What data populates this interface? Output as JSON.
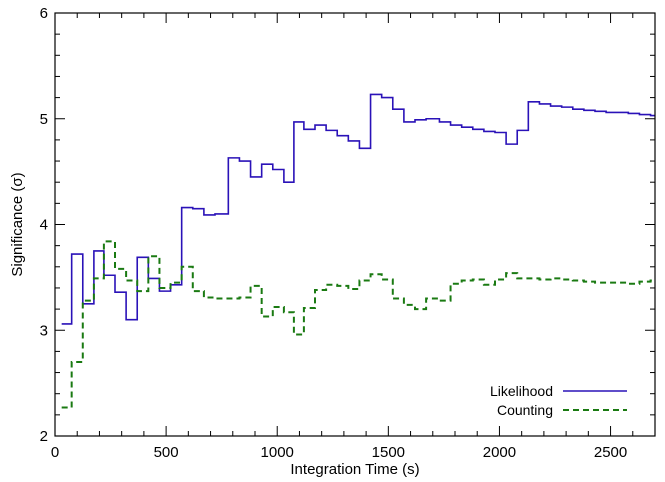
{
  "chart_data": {
    "type": "line",
    "step": true,
    "xlabel": "Integration Time (s)",
    "ylabel": "Significance (σ)",
    "xlim": [
      0,
      2700
    ],
    "ylim": [
      2,
      6
    ],
    "x_ticks": [
      0,
      500,
      1000,
      1500,
      2000,
      2500
    ],
    "x_tick_labels": [
      "0",
      "500",
      "1000",
      "1500",
      "2000",
      "2500"
    ],
    "y_ticks": [
      2,
      3,
      4,
      5,
      6
    ],
    "y_tick_labels": [
      "2",
      "3",
      "4",
      "5",
      "6"
    ],
    "grid": false,
    "legend": "bottom-right",
    "series": [
      {
        "name": "Likelihood",
        "color": "#2a12b8",
        "style": "solid",
        "bins": [
          [
            30,
            75,
            3.06
          ],
          [
            75,
            125,
            3.72
          ],
          [
            125,
            175,
            3.25
          ],
          [
            175,
            220,
            3.75
          ],
          [
            220,
            270,
            3.52
          ],
          [
            270,
            320,
            3.36
          ],
          [
            320,
            370,
            3.1
          ],
          [
            370,
            420,
            3.69
          ],
          [
            420,
            470,
            3.49
          ],
          [
            470,
            520,
            3.37
          ],
          [
            520,
            570,
            3.43
          ],
          [
            570,
            620,
            4.16
          ],
          [
            620,
            670,
            4.15
          ],
          [
            670,
            720,
            4.09
          ],
          [
            720,
            780,
            4.1
          ],
          [
            780,
            830,
            4.63
          ],
          [
            830,
            880,
            4.6
          ],
          [
            880,
            930,
            4.45
          ],
          [
            930,
            980,
            4.57
          ],
          [
            980,
            1030,
            4.52
          ],
          [
            1030,
            1075,
            4.4
          ],
          [
            1075,
            1120,
            4.97
          ],
          [
            1120,
            1170,
            4.9
          ],
          [
            1170,
            1220,
            4.94
          ],
          [
            1220,
            1270,
            4.89
          ],
          [
            1270,
            1320,
            4.84
          ],
          [
            1320,
            1370,
            4.79
          ],
          [
            1370,
            1420,
            4.72
          ],
          [
            1420,
            1470,
            5.23
          ],
          [
            1470,
            1520,
            5.2
          ],
          [
            1520,
            1570,
            5.09
          ],
          [
            1570,
            1620,
            4.97
          ],
          [
            1620,
            1670,
            4.99
          ],
          [
            1670,
            1730,
            5.0
          ],
          [
            1730,
            1780,
            4.97
          ],
          [
            1780,
            1830,
            4.94
          ],
          [
            1830,
            1880,
            4.92
          ],
          [
            1880,
            1930,
            4.9
          ],
          [
            1930,
            1980,
            4.88
          ],
          [
            1980,
            2030,
            4.87
          ],
          [
            2030,
            2080,
            4.76
          ],
          [
            2080,
            2130,
            4.89
          ],
          [
            2130,
            2180,
            5.16
          ],
          [
            2180,
            2230,
            5.14
          ],
          [
            2230,
            2280,
            5.12
          ],
          [
            2280,
            2330,
            5.11
          ],
          [
            2330,
            2380,
            5.09
          ],
          [
            2380,
            2430,
            5.08
          ],
          [
            2430,
            2480,
            5.07
          ],
          [
            2480,
            2530,
            5.06
          ],
          [
            2530,
            2580,
            5.06
          ],
          [
            2580,
            2630,
            5.05
          ],
          [
            2630,
            2680,
            5.04
          ],
          [
            2680,
            2700,
            5.03
          ]
        ]
      },
      {
        "name": "Counting",
        "color": "#1a7a12",
        "style": "dashed",
        "bins": [
          [
            30,
            75,
            2.27
          ],
          [
            75,
            125,
            2.7
          ],
          [
            125,
            175,
            3.28
          ],
          [
            175,
            220,
            3.49
          ],
          [
            220,
            270,
            3.84
          ],
          [
            270,
            320,
            3.58
          ],
          [
            320,
            370,
            3.47
          ],
          [
            370,
            420,
            3.37
          ],
          [
            420,
            470,
            3.7
          ],
          [
            470,
            520,
            3.4
          ],
          [
            520,
            570,
            3.45
          ],
          [
            570,
            620,
            3.6
          ],
          [
            620,
            670,
            3.37
          ],
          [
            670,
            720,
            3.31
          ],
          [
            720,
            780,
            3.3
          ],
          [
            780,
            830,
            3.3
          ],
          [
            830,
            880,
            3.31
          ],
          [
            880,
            930,
            3.42
          ],
          [
            930,
            980,
            3.13
          ],
          [
            980,
            1030,
            3.22
          ],
          [
            1030,
            1075,
            3.17
          ],
          [
            1075,
            1120,
            2.96
          ],
          [
            1120,
            1170,
            3.21
          ],
          [
            1170,
            1220,
            3.38
          ],
          [
            1220,
            1270,
            3.43
          ],
          [
            1270,
            1320,
            3.42
          ],
          [
            1320,
            1370,
            3.39
          ],
          [
            1370,
            1420,
            3.47
          ],
          [
            1420,
            1470,
            3.53
          ],
          [
            1470,
            1520,
            3.48
          ],
          [
            1520,
            1570,
            3.3
          ],
          [
            1570,
            1620,
            3.24
          ],
          [
            1620,
            1670,
            3.2
          ],
          [
            1670,
            1730,
            3.3
          ],
          [
            1730,
            1780,
            3.28
          ],
          [
            1780,
            1830,
            3.44
          ],
          [
            1830,
            1880,
            3.47
          ],
          [
            1880,
            1930,
            3.48
          ],
          [
            1930,
            1980,
            3.43
          ],
          [
            1980,
            2030,
            3.48
          ],
          [
            2030,
            2080,
            3.54
          ],
          [
            2080,
            2130,
            3.49
          ],
          [
            2130,
            2180,
            3.49
          ],
          [
            2180,
            2230,
            3.48
          ],
          [
            2230,
            2280,
            3.49
          ],
          [
            2280,
            2330,
            3.48
          ],
          [
            2330,
            2380,
            3.47
          ],
          [
            2380,
            2430,
            3.46
          ],
          [
            2430,
            2480,
            3.45
          ],
          [
            2480,
            2530,
            3.45
          ],
          [
            2530,
            2580,
            3.45
          ],
          [
            2580,
            2630,
            3.44
          ],
          [
            2630,
            2680,
            3.46
          ],
          [
            2680,
            2700,
            3.47
          ]
        ]
      }
    ]
  }
}
